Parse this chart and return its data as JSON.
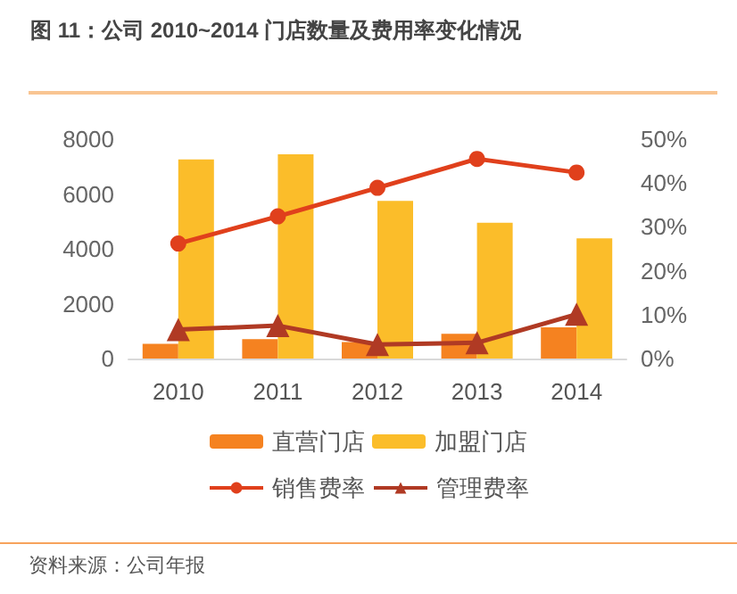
{
  "chart_data": {
    "type": "bar",
    "title": "图 11：公司 2010~2014 门店数量及费用率变化情况",
    "categories": [
      "2010",
      "2011",
      "2012",
      "2013",
      "2014"
    ],
    "series": [
      {
        "name": "直营门店",
        "color": "#f58220",
        "values": [
          540,
          710,
          600,
          900,
          1140
        ]
      },
      {
        "name": "加盟门店",
        "color": "#fbbd2a",
        "values": [
          7260,
          7450,
          5750,
          4950,
          4380
        ]
      },
      {
        "name": "销售费率",
        "type": "line",
        "axis": "y2",
        "marker": "circle",
        "color": "#e0401c",
        "values": [
          26.2,
          32.4,
          38.9,
          45.5,
          42.4
        ]
      },
      {
        "name": "管理费率",
        "type": "line",
        "axis": "y2",
        "marker": "triangle",
        "color": "#b03a24",
        "values": [
          6.6,
          7.5,
          3.2,
          3.6,
          10.1
        ]
      }
    ],
    "ylim": [
      0,
      8000
    ],
    "yticks": [
      0,
      2000,
      4000,
      6000,
      8000
    ],
    "y2lim": [
      0,
      50
    ],
    "y2ticks": [
      {
        "value": 0,
        "label": "0%"
      },
      {
        "value": 10,
        "label": "10%"
      },
      {
        "value": 20,
        "label": "20%"
      },
      {
        "value": 30,
        "label": "30%"
      },
      {
        "value": 40,
        "label": "40%"
      },
      {
        "value": 50,
        "label": "50%"
      }
    ],
    "grid": false,
    "legend": "bottom",
    "annotations": [
      "资料来源：公司年报"
    ]
  }
}
